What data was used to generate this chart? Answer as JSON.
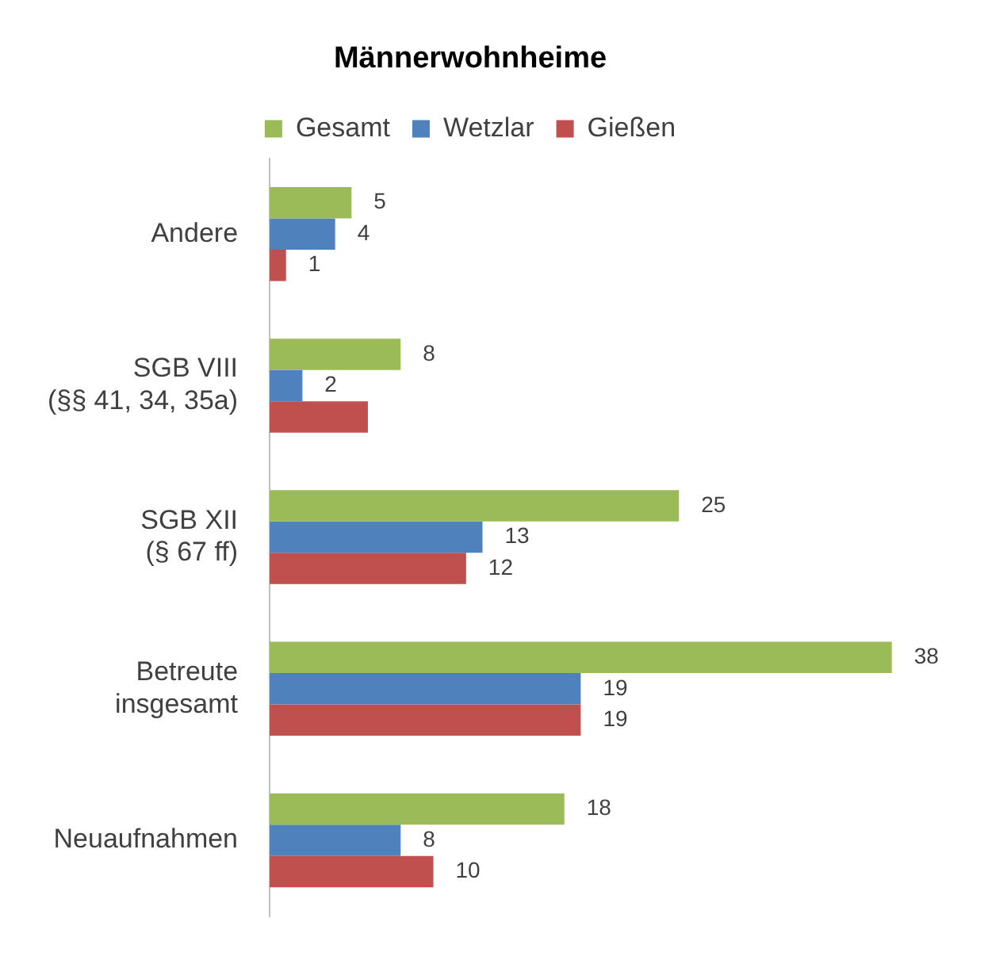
{
  "chart_data": {
    "type": "bar",
    "orientation": "horizontal",
    "title": "Männerwohnheime",
    "legend": "top",
    "categories": [
      "Andere",
      "SGB VIII\n(§§ 41, 34, 35a)",
      "SGB XII\n(§ 67 ff)",
      "Betreute\ninsgesamt",
      "Neuaufnahmen"
    ],
    "series": [
      {
        "name": "Gesamt",
        "color": "#9bbb59",
        "values": [
          5,
          8,
          25,
          38,
          18
        ],
        "value_labels": [
          "5",
          "8",
          "25",
          "38",
          "18"
        ]
      },
      {
        "name": "Wetzlar",
        "color": "#4f81bd",
        "values": [
          4,
          2,
          13,
          19,
          8
        ],
        "value_labels": [
          "4",
          "2",
          "13",
          "19",
          "8"
        ]
      },
      {
        "name": "Gießen",
        "color": "#c0504d",
        "values": [
          1,
          6,
          12,
          19,
          10
        ],
        "value_labels": [
          "1",
          null,
          "12",
          "19",
          "10"
        ]
      }
    ]
  }
}
